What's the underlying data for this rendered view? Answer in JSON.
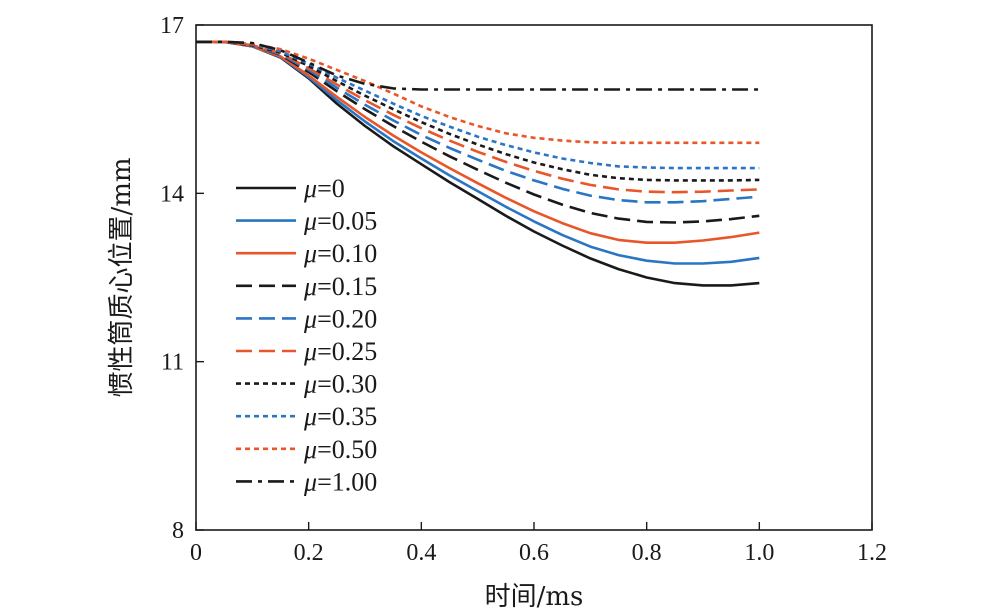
{
  "chart_data": {
    "type": "line",
    "title": "",
    "xlabel": "时间/ms",
    "ylabel": "惯性筒质心位置/mm",
    "xlim": [
      0,
      1.2
    ],
    "ylim": [
      8,
      17
    ],
    "x_ticks": [
      "0",
      "0.2",
      "0.4",
      "0.6",
      "0.8",
      "1.0",
      "1.2"
    ],
    "y_ticks": [
      "8",
      "11",
      "14",
      "17"
    ],
    "x_tick_values": [
      0,
      0.2,
      0.4,
      0.6,
      0.8,
      1.0,
      1.2
    ],
    "y_tick_values": [
      8,
      11,
      14,
      17
    ],
    "grid": false,
    "legend_position": "left",
    "x": [
      0,
      0.05,
      0.1,
      0.15,
      0.2,
      0.25,
      0.3,
      0.35,
      0.4,
      0.45,
      0.5,
      0.55,
      0.6,
      0.65,
      0.7,
      0.75,
      0.8,
      0.85,
      0.9,
      0.95,
      1.0
    ],
    "series": [
      {
        "mu_symbol": "μ",
        "label": "=0",
        "color": "#1a1a1a",
        "dash": "solid",
        "values": [
          16.7,
          16.7,
          16.62,
          16.42,
          16.05,
          15.6,
          15.2,
          14.84,
          14.52,
          14.2,
          13.9,
          13.6,
          13.32,
          13.07,
          12.84,
          12.65,
          12.5,
          12.4,
          12.36,
          12.36,
          12.4
        ]
      },
      {
        "mu_symbol": "μ",
        "label": "=0.05",
        "color": "#2a75c4",
        "dash": "solid",
        "values": [
          16.7,
          16.7,
          16.62,
          16.43,
          16.07,
          15.66,
          15.28,
          14.93,
          14.62,
          14.32,
          14.04,
          13.76,
          13.5,
          13.26,
          13.05,
          12.9,
          12.8,
          12.75,
          12.75,
          12.78,
          12.85
        ]
      },
      {
        "mu_symbol": "μ",
        "label": "=0.10",
        "color": "#e8562a",
        "dash": "solid",
        "values": [
          16.7,
          16.7,
          16.62,
          16.44,
          16.1,
          15.72,
          15.36,
          15.03,
          14.73,
          14.45,
          14.18,
          13.92,
          13.68,
          13.47,
          13.29,
          13.17,
          13.12,
          13.12,
          13.16,
          13.22,
          13.3
        ]
      },
      {
        "mu_symbol": "μ",
        "label": "=0.15",
        "color": "#1a1a1a",
        "dash": "dashed",
        "values": [
          16.7,
          16.7,
          16.63,
          16.47,
          16.16,
          15.82,
          15.5,
          15.2,
          14.92,
          14.66,
          14.42,
          14.19,
          13.98,
          13.8,
          13.65,
          13.55,
          13.49,
          13.48,
          13.5,
          13.54,
          13.6
        ]
      },
      {
        "mu_symbol": "μ",
        "label": "=0.20",
        "color": "#2a75c4",
        "dash": "dashed",
        "values": [
          16.7,
          16.7,
          16.63,
          16.48,
          16.2,
          15.88,
          15.58,
          15.3,
          15.04,
          14.81,
          14.6,
          14.4,
          14.23,
          14.08,
          13.96,
          13.88,
          13.84,
          13.84,
          13.86,
          13.9,
          13.94
        ]
      },
      {
        "mu_symbol": "μ",
        "label": "=0.25",
        "color": "#e8562a",
        "dash": "dashed",
        "values": [
          16.7,
          16.7,
          16.64,
          16.5,
          16.23,
          15.94,
          15.66,
          15.4,
          15.16,
          14.94,
          14.74,
          14.56,
          14.4,
          14.26,
          14.15,
          14.07,
          14.03,
          14.02,
          14.03,
          14.05,
          14.07
        ]
      },
      {
        "mu_symbol": "μ",
        "label": "=0.30",
        "color": "#1a1a1a",
        "dash": "dotted",
        "values": [
          16.7,
          16.7,
          16.64,
          16.51,
          16.27,
          16.0,
          15.74,
          15.5,
          15.27,
          15.06,
          14.87,
          14.7,
          14.55,
          14.43,
          14.33,
          14.27,
          14.24,
          14.23,
          14.23,
          14.23,
          14.24
        ]
      },
      {
        "mu_symbol": "μ",
        "label": "=0.35",
        "color": "#2a75c4",
        "dash": "dotted",
        "values": [
          16.7,
          16.7,
          16.65,
          16.53,
          16.31,
          16.06,
          15.83,
          15.6,
          15.38,
          15.19,
          15.01,
          14.86,
          14.73,
          14.62,
          14.54,
          14.48,
          14.46,
          14.45,
          14.45,
          14.45,
          14.45
        ]
      },
      {
        "mu_symbol": "μ",
        "label": "=0.50",
        "color": "#e8562a",
        "dash": "dotted",
        "values": [
          16.7,
          16.7,
          16.66,
          16.57,
          16.4,
          16.2,
          16.0,
          15.78,
          15.55,
          15.36,
          15.2,
          15.07,
          14.99,
          14.94,
          14.91,
          14.9,
          14.9,
          14.9,
          14.9,
          14.9,
          14.9
        ]
      },
      {
        "mu_symbol": "μ",
        "label": "=1.00",
        "color": "#1a1a1a",
        "dash": "dashdot",
        "values": [
          16.7,
          16.7,
          16.68,
          16.55,
          16.33,
          16.1,
          15.95,
          15.87,
          15.85,
          15.85,
          15.85,
          15.85,
          15.85,
          15.85,
          15.85,
          15.85,
          15.85,
          15.85,
          15.85,
          15.85,
          15.85
        ]
      }
    ]
  }
}
